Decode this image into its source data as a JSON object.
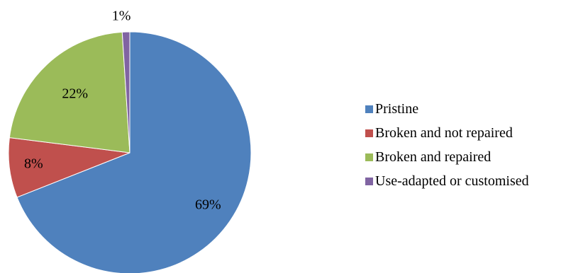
{
  "chart_data": {
    "type": "pie",
    "title": "",
    "legend_position": "right",
    "start_angle_deg": 0,
    "direction": "clockwise",
    "slices": [
      {
        "label": "Pristine",
        "value": 69,
        "data_label": "69%",
        "color": "#4F81BD"
      },
      {
        "label": "Broken and not repaired",
        "value": 8,
        "data_label": "8%",
        "color": "#C0504D"
      },
      {
        "label": "Broken and repaired",
        "value": 22,
        "data_label": "22%",
        "color": "#9BBB59"
      },
      {
        "label": "Use-adapted or customised",
        "value": 1,
        "data_label": "1%",
        "color": "#8064A2"
      }
    ]
  }
}
